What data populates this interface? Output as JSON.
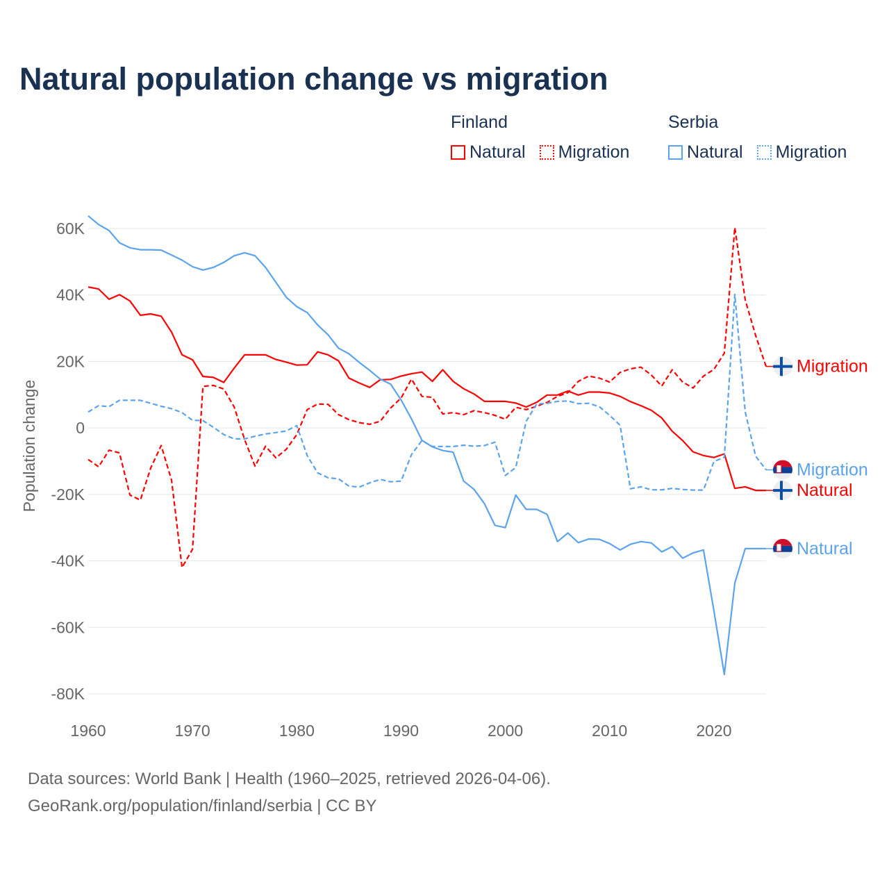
{
  "title": "Natural population change vs migration",
  "legend": {
    "groups": [
      {
        "country": "Finland",
        "items": [
          {
            "label": "Natural",
            "style": "solid",
            "color": "#ff0000"
          },
          {
            "label": "Migration",
            "style": "dotted",
            "color": "#ff0000"
          }
        ]
      },
      {
        "country": "Serbia",
        "items": [
          {
            "label": "Natural",
            "style": "solid",
            "color": "#5ba3ec"
          },
          {
            "label": "Migration",
            "style": "dotted",
            "color": "#5ba3ec"
          }
        ]
      }
    ]
  },
  "footer": {
    "line1": "Data sources: World Bank | Health (1960–2025, retrieved 2026-04-06).",
    "line2": "GeoRank.org/population/finland/serbia | CC BY"
  },
  "chart_data": {
    "type": "line",
    "title": "Natural population change vs migration",
    "xlabel": "",
    "ylabel": "Population change",
    "xlim": [
      1960,
      2025
    ],
    "ylim": [
      -80000,
      60000
    ],
    "x_ticks": [
      1960,
      1970,
      1980,
      1990,
      2000,
      2010,
      2020
    ],
    "x_tick_labels": [
      "1960",
      "1970",
      "1980",
      "1990",
      "2000",
      "2010",
      "2020"
    ],
    "y_ticks": [
      60000,
      40000,
      20000,
      0,
      -20000,
      -40000,
      -60000,
      -80000
    ],
    "y_tick_labels": [
      "60K",
      "40K",
      "20K",
      "0",
      "-20K",
      "-40K",
      "-60K",
      "-80K"
    ],
    "grid": true,
    "legend_position": "top-right",
    "x_start": 1960,
    "series": [
      {
        "name": "Finland Natural",
        "end_label": "Natural",
        "color": "#ff0000",
        "dash": false,
        "flag": "finland",
        "values": [
          42.4,
          41.8,
          38.7,
          40.1,
          38.2,
          33.9,
          34.3,
          33.6,
          28.8,
          22,
          20.5,
          15.5,
          15.2,
          13.7,
          18,
          22,
          22,
          22,
          20.6,
          19.8,
          18.9,
          19,
          22.9,
          22,
          20.2,
          15,
          13.5,
          12.2,
          14.5,
          14.6,
          15.6,
          16.3,
          16.8,
          14,
          17.5,
          14,
          11.8,
          10.2,
          8,
          8,
          8,
          7.5,
          6.3,
          7.7,
          9.9,
          9.9,
          11.1,
          9.9,
          10.8,
          10.8,
          10.5,
          9.5,
          7.9,
          6.7,
          5.3,
          3,
          -1,
          -3.8,
          -7.2,
          -8.3,
          -8.9,
          -7.8,
          -18.2,
          -17.7,
          -18.8,
          -18.8
        ]
      },
      {
        "name": "Finland Migration",
        "end_label": "Migration",
        "color": "#ff0000",
        "dash": true,
        "flag": "finland",
        "values": [
          -9.5,
          -11.7,
          -6.7,
          -7.5,
          -20.2,
          -21.7,
          -12,
          -5.3,
          -15.8,
          -42,
          -36.5,
          12.5,
          12.8,
          11.7,
          6.3,
          -3.5,
          -11.5,
          -5.5,
          -9,
          -6.4,
          -2,
          5.5,
          7.2,
          7.1,
          4,
          2.5,
          1.6,
          1.1,
          2,
          6,
          9,
          14.7,
          9.5,
          9.2,
          4.2,
          4.6,
          4,
          5.2,
          4.6,
          3.8,
          2.6,
          6.2,
          5.5,
          6.5,
          7.7,
          9.5,
          10.6,
          14,
          15.6,
          15,
          13.8,
          16.7,
          17.8,
          18.3,
          15.9,
          12.6,
          17.5,
          13.8,
          12,
          15.6,
          17.6,
          22.5,
          60.3,
          38.5,
          27.8,
          18.5
        ]
      },
      {
        "name": "Serbia Natural",
        "end_label": "Natural",
        "color": "#5ba3ec",
        "dash": false,
        "flag": "serbia",
        "values": [
          63.8,
          61.2,
          59.4,
          55.7,
          54.2,
          53.6,
          53.6,
          53.5,
          52,
          50.5,
          48.5,
          47.5,
          48.3,
          49.8,
          51.8,
          52.7,
          51.8,
          48.3,
          43.8,
          39.3,
          36.5,
          34.7,
          31,
          28,
          24,
          22.3,
          19.7,
          17.3,
          14.7,
          13.2,
          8.4,
          2.7,
          -3.7,
          -5.7,
          -6.8,
          -7.3,
          -16,
          -18.5,
          -22.8,
          -29.3,
          -30,
          -20.2,
          -24.5,
          -24.5,
          -26,
          -34.2,
          -31.6,
          -34.5,
          -33.4,
          -33.5,
          -34.8,
          -36.7,
          -35,
          -34.2,
          -34.6,
          -37.3,
          -35.7,
          -39.2,
          -37.6,
          -36.7,
          -55,
          -74.2,
          -46.7,
          -36.3,
          -36.3,
          -36.3
        ]
      },
      {
        "name": "Serbia Migration",
        "end_label": "Migration",
        "color": "#5ba3ec",
        "dash": true,
        "flag": "serbia",
        "values": [
          4.8,
          6.7,
          6.4,
          8.3,
          8.3,
          8.3,
          7.4,
          6.5,
          5.8,
          4.6,
          2.3,
          2.2,
          0.2,
          -2,
          -3.3,
          -3.3,
          -2.5,
          -1.8,
          -1.4,
          -0.9,
          0.7,
          -8.3,
          -13.5,
          -15,
          -15.3,
          -17.5,
          -17.8,
          -16.5,
          -15.5,
          -16.2,
          -16,
          -8,
          -3.8,
          -5.6,
          -5.6,
          -5.6,
          -5.2,
          -5.5,
          -5.3,
          -4.3,
          -14.3,
          -11.9,
          2,
          7.2,
          7.4,
          8,
          8.1,
          7.3,
          7.4,
          6.4,
          3.8,
          0.8,
          -18.3,
          -17.7,
          -18.6,
          -18.6,
          -18.2,
          -18.5,
          -18.7,
          -18.7,
          -10.1,
          -8.8,
          40.2,
          4.8,
          -8.5,
          -12.6
        ]
      }
    ],
    "values_unit": "thousands"
  }
}
